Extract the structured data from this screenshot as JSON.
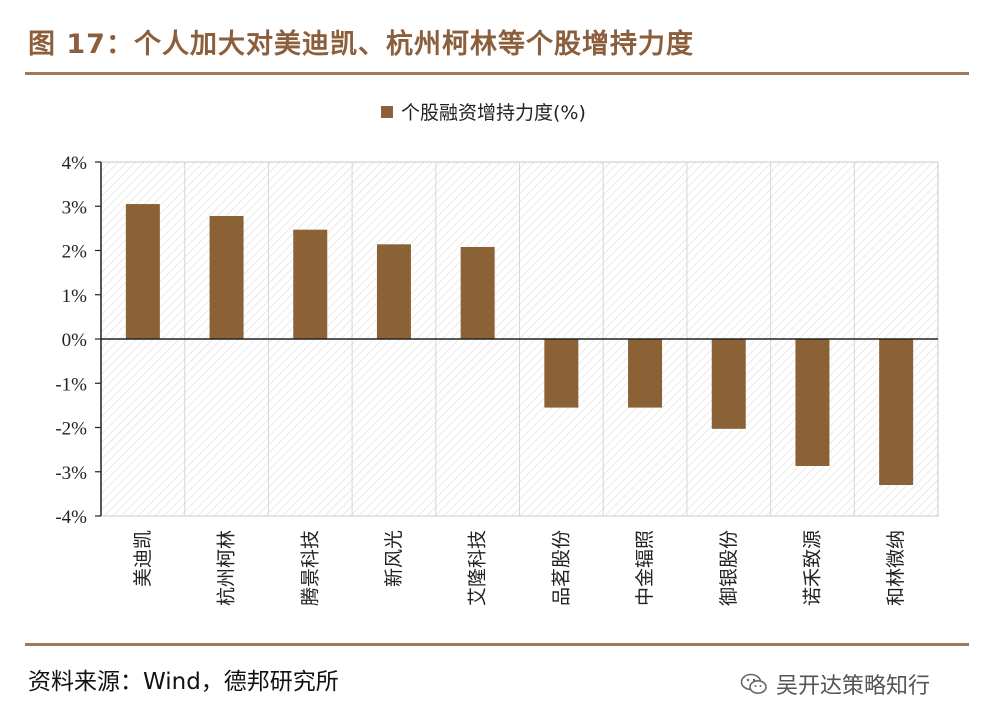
{
  "figure": {
    "title": "图 17：个人加大对美迪凯、杭州柯林等个股增持力度",
    "source": "资料来源：Wind，德邦研究所",
    "watermark": "吴开达策略知行",
    "watermark_icon": "wechat-icon"
  },
  "colors": {
    "bar": "#8b6235",
    "rule": "#a07a58",
    "title": "#8b5e3c"
  },
  "chart_data": {
    "type": "bar",
    "title": "",
    "xlabel": "",
    "ylabel": "",
    "categories": [
      "美迪凯",
      "杭州柯林",
      "腾景科技",
      "新风光",
      "艾隆科技",
      "品茗股份",
      "中金辐照",
      "御银股份",
      "诺禾致源",
      "和林微纳"
    ],
    "series": [
      {
        "name": "个股融资增持力度(%)",
        "values": [
          3.05,
          2.78,
          2.47,
          2.14,
          2.08,
          -1.55,
          -1.55,
          -2.03,
          -2.87,
          -3.3
        ]
      }
    ],
    "ylim": [
      -4,
      4
    ],
    "yticks": [
      4,
      3,
      2,
      1,
      0,
      -1,
      -2,
      -3,
      -4
    ],
    "ytick_labels": [
      "4%",
      "3%",
      "2%",
      "1%",
      "0%",
      "-1%",
      "-2%",
      "-3%",
      "-4%"
    ],
    "legend_position": "top-center",
    "grid": "vertical-category-separators, hatched plot background"
  }
}
